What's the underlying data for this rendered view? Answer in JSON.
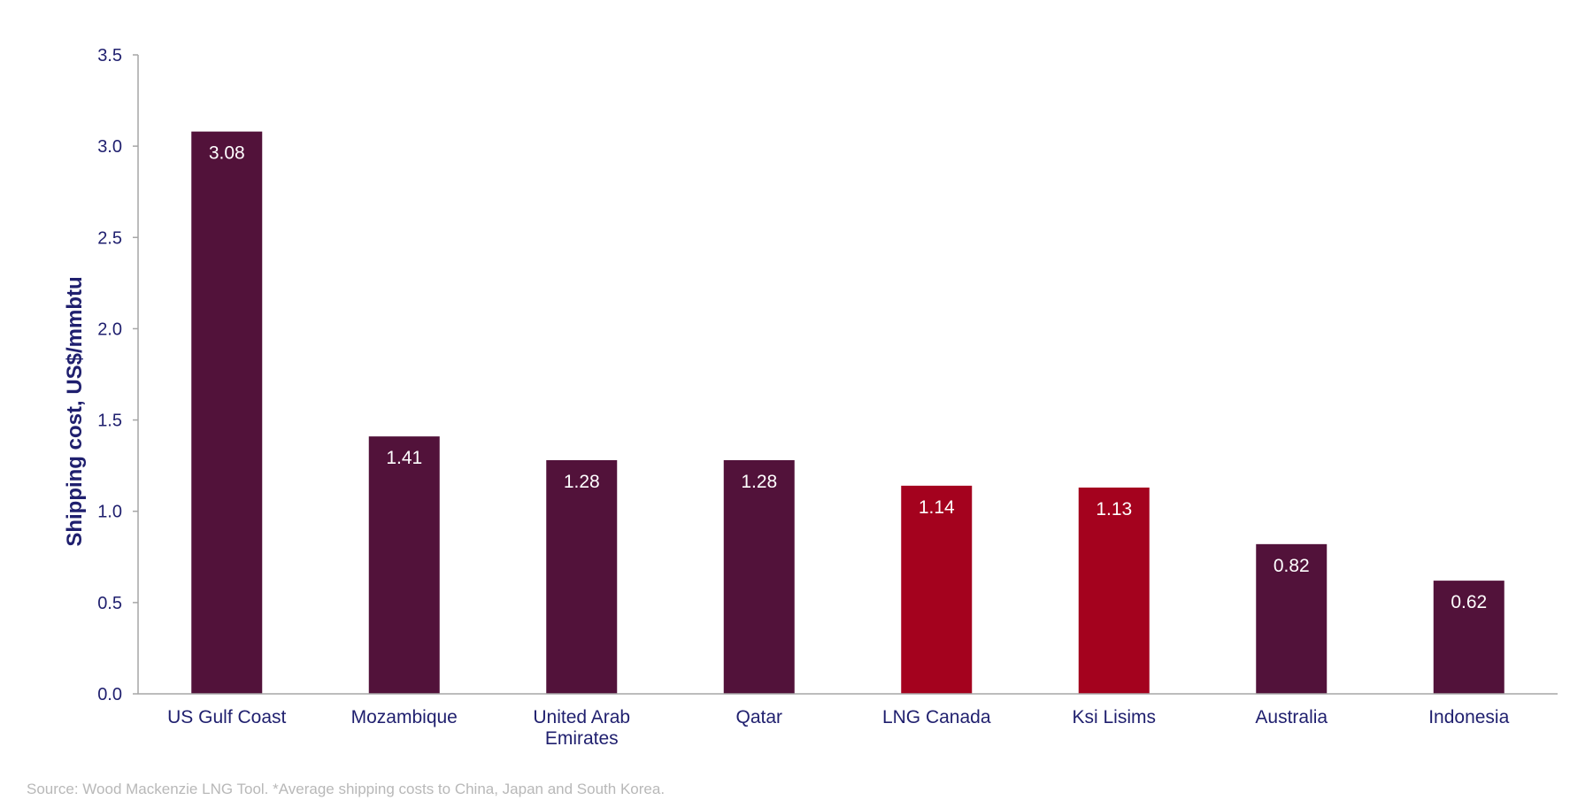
{
  "chart_data": {
    "type": "bar",
    "title": "",
    "xlabel": "",
    "ylabel": "Shipping cost, US$/mmbtu",
    "ylim": [
      0,
      3.5
    ],
    "yticks": [
      "0.0",
      "0.5",
      "1.0",
      "1.5",
      "2.0",
      "2.5",
      "3.0",
      "3.5"
    ],
    "categories": [
      [
        "US Gulf Coast"
      ],
      [
        "Mozambique"
      ],
      [
        "United Arab",
        "Emirates"
      ],
      [
        "Qatar"
      ],
      [
        "LNG Canada"
      ],
      [
        "Ksi Lisims"
      ],
      [
        "Australia"
      ],
      [
        "Indonesia"
      ]
    ],
    "values": [
      3.08,
      1.41,
      1.28,
      1.28,
      1.14,
      1.13,
      0.82,
      0.62
    ],
    "value_labels": [
      "3.08",
      "1.41",
      "1.28",
      "1.28",
      "1.14",
      "1.13",
      "0.82",
      "0.62"
    ],
    "bar_colors": [
      "#52123a",
      "#52123a",
      "#52123a",
      "#52123a",
      "#a4021e",
      "#a4021e",
      "#52123a",
      "#52123a"
    ],
    "grid": false,
    "legend": "none"
  },
  "footer": {
    "source": "Source: Wood Mackenzie LNG Tool. *Average shipping costs to China, Japan and South Korea."
  }
}
